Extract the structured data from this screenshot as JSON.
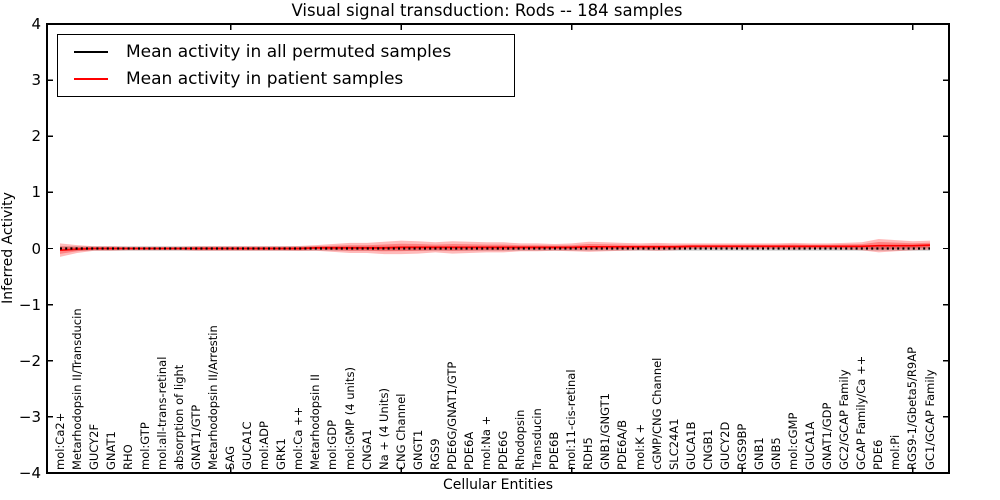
{
  "title": "Visual signal transduction: Rods -- 184 samples",
  "legend": {
    "items": [
      {
        "label": "Mean activity in all permuted samples",
        "color": "#000000"
      },
      {
        "label": "Mean activity in patient samples",
        "color": "#ff0000"
      }
    ]
  },
  "axes": {
    "xlabel": "Cellular Entities",
    "ylabel": "Inferred Activity",
    "yticks": [
      "4",
      "3",
      "2",
      "1",
      "0",
      "−1",
      "−2",
      "−3",
      "−4"
    ]
  },
  "chart_data": {
    "type": "line",
    "title": "Visual signal transduction: Rods -- 184 samples",
    "xlabel": "Cellular Entities",
    "ylabel": "Inferred Activity",
    "ylim": [
      -4,
      4
    ],
    "grid": false,
    "legend_position": "upper left",
    "categories": [
      "mol:Ca2+",
      "Metarhodopsin II/Transducin",
      "GUCY2F",
      "GNAT1",
      "RHO",
      "mol:GTP",
      "mol:all-trans-retinal",
      "absorption of light",
      "GNAT1/GTP",
      "Metarhodopsin II/Arrestin",
      "SAG",
      "GUCA1C",
      "mol:ADP",
      "GRK1",
      "mol:Ca ++",
      "Metarhodopsin II",
      "mol:GDP",
      "mol:GMP (4 units)",
      "CNGA1",
      "Na + (4 Units)",
      "CNG Channel",
      "GNGT1",
      "RGS9",
      "PDE6G/GNAT1/GTP",
      "PDE6A",
      "mol:Na +",
      "PDE6G",
      "Rhodopsin",
      "Transducin",
      "PDE6B",
      "mol:11-cis-retinal",
      "RDH5",
      "GNB1/GNGT1",
      "PDE6A/B",
      "mol:K +",
      "cGMP/CNG Channel",
      "SLC24A1",
      "GUCA1B",
      "CNGB1",
      "GUCY2D",
      "RGS9BP",
      "GNB1",
      "GNB5",
      "mol:cGMP",
      "GUCA1A",
      "GNAT1/GDP",
      "GC2/GCAP Family",
      "GCAP Family/Ca ++",
      "PDE6",
      "mol:Pi",
      "RGS9-1/Gbeta5/R9AP",
      "GC1/GCAP Family"
    ],
    "series": [
      {
        "name": "Mean activity in all permuted samples",
        "color": "#000000",
        "style": "dotted",
        "values": [
          0,
          0,
          0,
          0,
          0,
          0,
          0,
          0,
          0,
          0,
          0,
          0,
          0,
          0,
          0,
          0,
          0,
          0,
          0,
          0,
          0,
          0,
          0,
          0,
          0,
          0,
          0,
          0,
          0,
          0,
          0,
          0,
          0,
          0,
          0,
          0,
          0,
          0,
          0,
          0,
          0,
          0,
          0,
          0,
          0,
          0,
          0,
          0,
          0,
          0,
          0,
          0
        ]
      },
      {
        "name": "Mean activity in patient samples",
        "color": "#ff0000",
        "style": "solid",
        "values": [
          -0.03,
          -0.01,
          0,
          0,
          0,
          0,
          0,
          0,
          0,
          0,
          0,
          0,
          0,
          0,
          0,
          0.01,
          0.01,
          0.01,
          0.01,
          0.01,
          0.02,
          0.02,
          0.02,
          0.02,
          0.02,
          0.02,
          0.02,
          0.02,
          0.02,
          0.02,
          0.02,
          0.03,
          0.03,
          0.03,
          0.03,
          0.03,
          0.03,
          0.04,
          0.04,
          0.04,
          0.04,
          0.04,
          0.04,
          0.04,
          0.04,
          0.04,
          0.04,
          0.04,
          0.05,
          0.05,
          0.05,
          0.06
        ]
      }
    ],
    "patient_band_halfwidth": [
      0.12,
      0.07,
      0.04,
      0.04,
      0.03,
      0.03,
      0.03,
      0.03,
      0.04,
      0.04,
      0.04,
      0.04,
      0.04,
      0.04,
      0.045,
      0.05,
      0.07,
      0.09,
      0.09,
      0.11,
      0.12,
      0.11,
      0.09,
      0.11,
      0.1,
      0.09,
      0.09,
      0.07,
      0.07,
      0.06,
      0.07,
      0.09,
      0.08,
      0.07,
      0.06,
      0.07,
      0.06,
      0.05,
      0.05,
      0.05,
      0.05,
      0.05,
      0.05,
      0.06,
      0.05,
      0.05,
      0.06,
      0.07,
      0.12,
      0.1,
      0.08,
      0.08
    ],
    "permuted_band_halfwidth": 0.04,
    "band_color": "#ff0000",
    "permuted_band_color": "#000000"
  }
}
